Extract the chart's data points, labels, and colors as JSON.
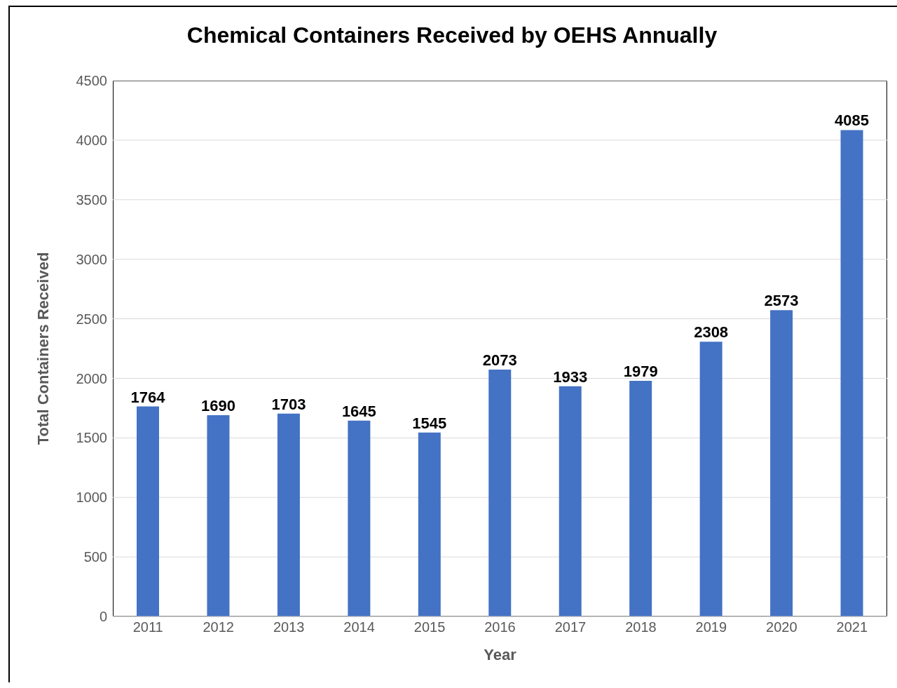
{
  "chart_data": {
    "type": "bar",
    "title": "Chemical Containers Received by OEHS Annually",
    "xlabel": "Year",
    "ylabel": "Total Containers Received",
    "categories": [
      "2011",
      "2012",
      "2013",
      "2014",
      "2015",
      "2016",
      "2017",
      "2018",
      "2019",
      "2020",
      "2021"
    ],
    "values": [
      1764,
      1690,
      1703,
      1645,
      1545,
      2073,
      1933,
      1979,
      2308,
      2573,
      4085
    ],
    "color": "#4472c4",
    "ylim": [
      0,
      4500
    ],
    "yticks": [
      0,
      500,
      1000,
      1500,
      2000,
      2500,
      3000,
      3500,
      4000,
      4500
    ],
    "grid": "y",
    "data_labels": true,
    "legend": false
  }
}
